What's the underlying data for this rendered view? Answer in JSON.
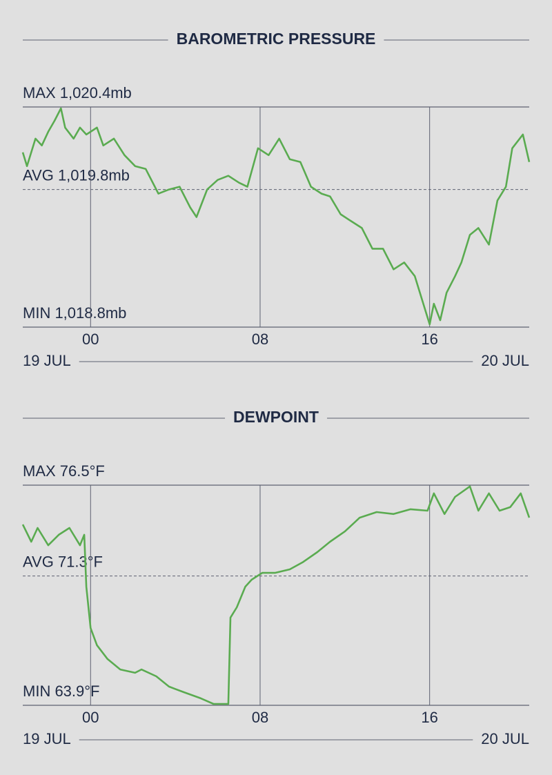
{
  "chart_data": [
    {
      "type": "line",
      "title": "BAROMETRIC PRESSURE",
      "color": "#5aab50",
      "date_labels": [
        "19 JUL",
        "20 JUL"
      ],
      "xlim": [
        -3.2,
        20.7
      ],
      "xticks": [
        {
          "value": 0,
          "label": "00"
        },
        {
          "value": 8,
          "label": "08"
        },
        {
          "value": 16,
          "label": "16"
        }
      ],
      "ylim": [
        1018.8,
        1020.4
      ],
      "yticks": [
        {
          "value": 1020.4,
          "label": "MAX 1,020.4mb"
        },
        {
          "value": 1019.8,
          "label": "AVG 1,019.8mb"
        },
        {
          "value": 1018.8,
          "label": "MIN 1,018.8mb"
        }
      ],
      "x": [
        -3.2,
        -3.0,
        -2.6,
        -2.3,
        -2.0,
        -1.7,
        -1.4,
        -1.2,
        -0.8,
        -0.5,
        -0.2,
        0.3,
        0.6,
        1.1,
        1.6,
        2.1,
        2.6,
        3.2,
        3.7,
        4.2,
        4.7,
        5.0,
        5.5,
        6.0,
        6.5,
        7.0,
        7.4,
        7.9,
        8.4,
        8.9,
        9.4,
        9.9,
        10.4,
        10.9,
        11.3,
        11.8,
        12.3,
        12.8,
        13.3,
        13.8,
        14.3,
        14.8,
        15.3,
        15.6,
        16.0,
        16.2,
        16.5,
        16.8,
        17.2,
        17.5,
        17.9,
        18.3,
        18.8,
        19.2,
        19.6,
        19.9,
        20.4,
        20.7
      ],
      "values": [
        1020.07,
        1019.97,
        1020.17,
        1020.12,
        1020.22,
        1020.3,
        1020.39,
        1020.25,
        1020.17,
        1020.25,
        1020.2,
        1020.25,
        1020.12,
        1020.17,
        1020.05,
        1019.97,
        1019.95,
        1019.77,
        1019.8,
        1019.82,
        1019.67,
        1019.6,
        1019.8,
        1019.87,
        1019.9,
        1019.85,
        1019.82,
        1020.1,
        1020.05,
        1020.17,
        1020.02,
        1020.0,
        1019.82,
        1019.77,
        1019.75,
        1019.62,
        1019.57,
        1019.52,
        1019.37,
        1019.37,
        1019.22,
        1019.27,
        1019.17,
        1019.02,
        1018.82,
        1018.97,
        1018.85,
        1019.05,
        1019.17,
        1019.27,
        1019.47,
        1019.52,
        1019.4,
        1019.72,
        1019.82,
        1020.1,
        1020.2,
        1020.0
      ]
    },
    {
      "type": "line",
      "title": "DEWPOINT",
      "color": "#5aab50",
      "date_labels": [
        "19 JUL",
        "20 JUL"
      ],
      "xlim": [
        -3.2,
        20.7
      ],
      "xticks": [
        {
          "value": 0,
          "label": "00"
        },
        {
          "value": 8,
          "label": "08"
        },
        {
          "value": 16,
          "label": "16"
        }
      ],
      "ylim": [
        63.9,
        76.5
      ],
      "yticks": [
        {
          "value": 76.5,
          "label": "MAX 76.5°F"
        },
        {
          "value": 71.3,
          "label": "AVG 71.3°F"
        },
        {
          "value": 63.9,
          "label": "MIN 63.9°F"
        }
      ],
      "x": [
        -3.2,
        -2.8,
        -2.5,
        -2.0,
        -1.5,
        -1.0,
        -0.5,
        -0.3,
        -0.2,
        0.0,
        0.3,
        0.8,
        1.4,
        2.1,
        2.4,
        3.1,
        3.7,
        4.4,
        5.2,
        5.8,
        6.5,
        6.6,
        6.9,
        7.3,
        7.6,
        8.1,
        8.7,
        9.4,
        10.0,
        10.7,
        11.3,
        12.0,
        12.7,
        13.5,
        14.3,
        15.1,
        15.9,
        16.2,
        16.7,
        17.2,
        17.9,
        18.3,
        18.8,
        19.3,
        19.8,
        20.3,
        20.7
      ],
      "values": [
        74.25,
        73.26,
        74.05,
        73.06,
        73.66,
        74.05,
        73.06,
        73.66,
        70.69,
        68.32,
        67.34,
        66.55,
        65.95,
        65.76,
        65.95,
        65.56,
        64.97,
        64.65,
        64.3,
        63.98,
        63.98,
        68.92,
        69.51,
        70.69,
        71.09,
        71.48,
        71.48,
        71.68,
        72.08,
        72.67,
        73.26,
        73.85,
        74.64,
        74.96,
        74.85,
        75.12,
        75.04,
        76.03,
        74.85,
        75.83,
        76.43,
        75.04,
        76.03,
        75.04,
        75.24,
        76.03,
        74.64
      ]
    }
  ]
}
